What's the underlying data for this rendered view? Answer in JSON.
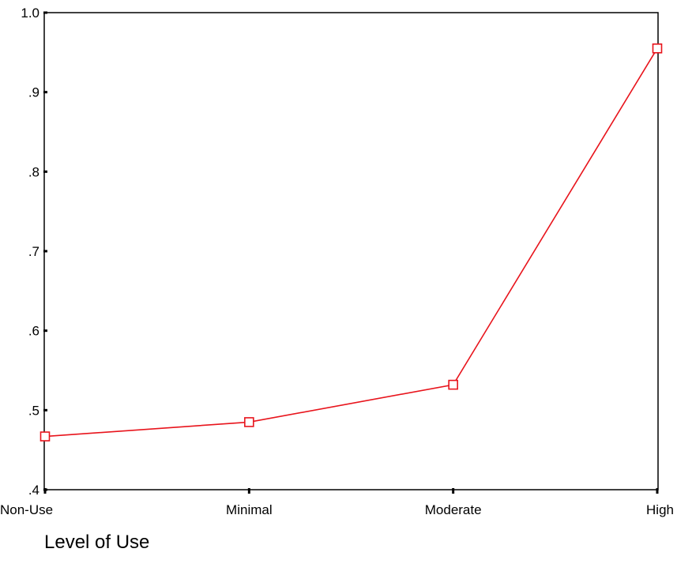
{
  "chart_data": {
    "type": "line",
    "title": "",
    "xlabel": "Level of Use",
    "ylabel": "",
    "categories": [
      "Non-Use",
      "Minimal",
      "Moderate",
      "High"
    ],
    "series": [
      {
        "values": [
          0.467,
          0.485,
          0.532,
          0.955
        ],
        "color": "#e8141c",
        "marker": "open-square"
      }
    ],
    "ylim": [
      0.4,
      1.0
    ],
    "yticks": [
      {
        "value": 0.4,
        "label": ".4"
      },
      {
        "value": 0.5,
        "label": ".5"
      },
      {
        "value": 0.6,
        "label": ".6"
      },
      {
        "value": 0.7,
        "label": ".7"
      },
      {
        "value": 0.8,
        "label": ".8"
      },
      {
        "value": 0.9,
        "label": ".9"
      },
      {
        "value": 1.0,
        "label": "1.0"
      }
    ],
    "grid": false,
    "legend": "none"
  }
}
